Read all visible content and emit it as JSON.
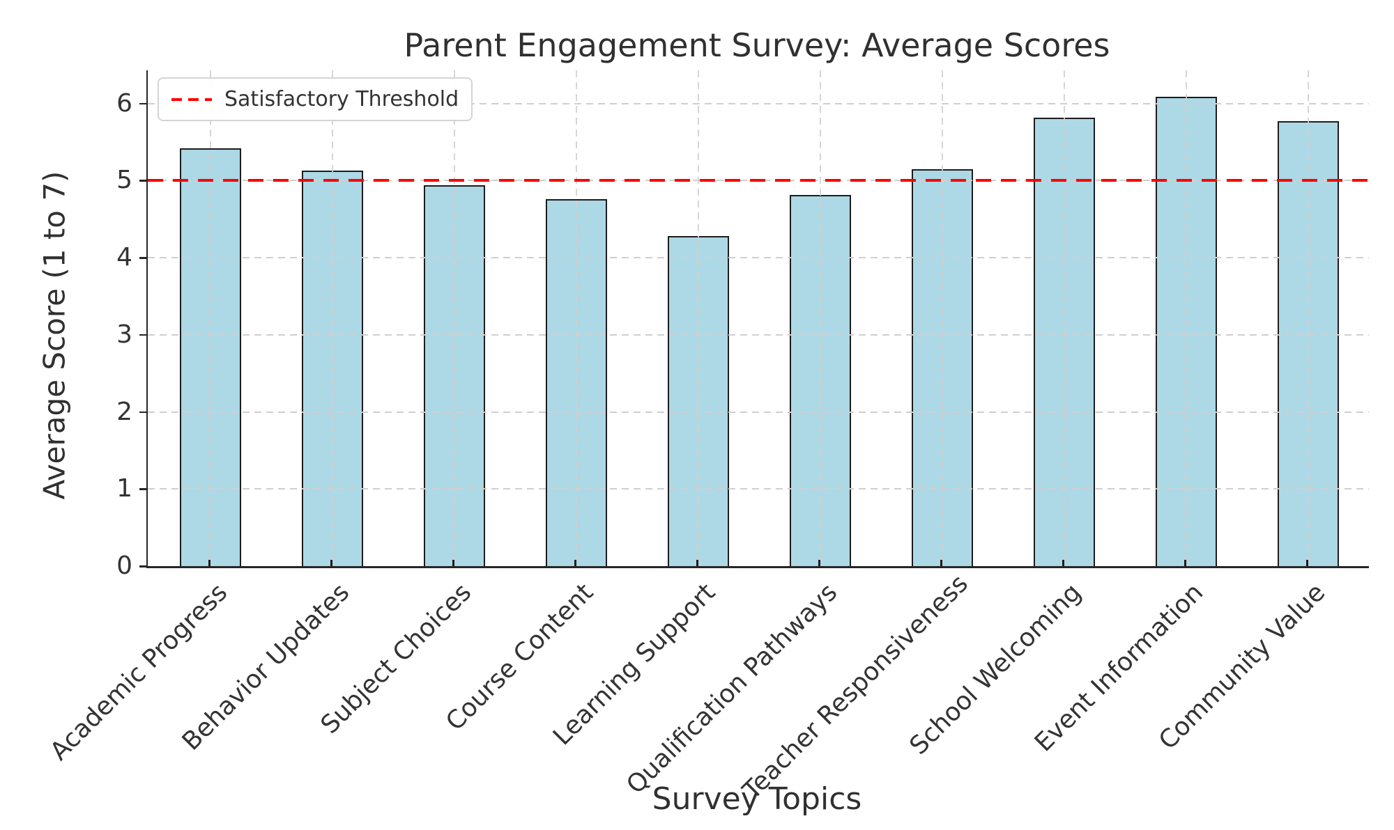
{
  "chart_data": {
    "type": "bar",
    "title": "Parent Engagement Survey: Average Scores",
    "xlabel": "Survey Topics",
    "ylabel": "Average Score (1 to 7)",
    "categories": [
      "Academic Progress",
      "Behavior Updates",
      "Subject Choices",
      "Course Content",
      "Learning Support",
      "Qualification Pathways",
      "Teacher Responsiveness",
      "School Welcoming",
      "Event Information",
      "Community Value"
    ],
    "values": [
      5.42,
      5.13,
      4.94,
      4.76,
      4.28,
      4.81,
      5.15,
      5.82,
      6.09,
      5.77
    ],
    "ylim": [
      0,
      6.43
    ],
    "yticks": [
      0,
      1,
      2,
      3,
      4,
      5,
      6
    ],
    "grid": true,
    "legend_position": "upper left",
    "bar_color": "#add8e6",
    "bar_edge_color": "#1c1c1c",
    "threshold": {
      "value": 5.0,
      "label": "Satisfactory Threshold",
      "color": "#ff0000",
      "style": "dashed"
    }
  }
}
